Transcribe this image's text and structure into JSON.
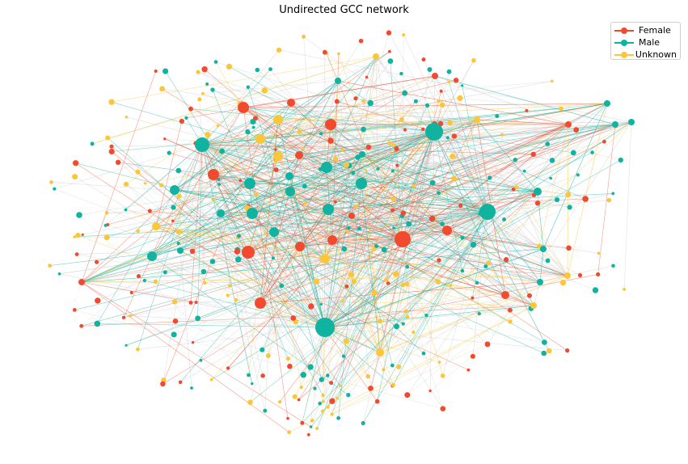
{
  "title": "Undirected GCC network",
  "legend": [
    {
      "label": "Female",
      "color": "#f24a2e"
    },
    {
      "label": "Male",
      "color": "#0fb3a0"
    },
    {
      "label": "Unknown",
      "color": "#fbc637"
    }
  ],
  "edge_color": "#c8c8c8",
  "node_types": [
    "Female",
    "Male",
    "Unknown"
  ]
}
